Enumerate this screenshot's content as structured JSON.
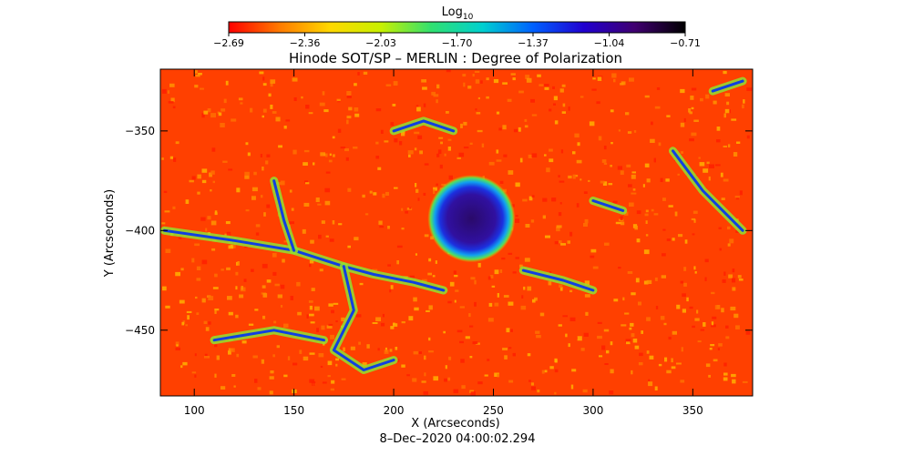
{
  "chart_data": {
    "type": "heatmap",
    "title": "Hinode SOT/SP – MERLIN : Degree of Polarization",
    "colorbar": {
      "label_base": "Log",
      "label_subscript": "10",
      "ticks": [
        "−2.69",
        "−2.36",
        "−2.03",
        "−1.70",
        "−1.37",
        "−1.04",
        "−0.71"
      ],
      "range": [
        -2.69,
        -0.71
      ],
      "colors": [
        "#ff0000",
        "#ff7a00",
        "#ffd800",
        "#c8f000",
        "#30e070",
        "#00d0d0",
        "#0060ff",
        "#2000d0",
        "#400070",
        "#000000"
      ]
    },
    "xlabel": "X (Arcseconds)",
    "ylabel": "Y (Arcseconds)",
    "xlim": [
      83,
      380
    ],
    "ylim": [
      -483,
      -319
    ],
    "x_ticks": [
      100,
      150,
      200,
      250,
      300,
      350
    ],
    "y_ticks": [
      -350,
      -400,
      -450
    ],
    "y_tick_labels": [
      "−350",
      "−400",
      "−450"
    ],
    "date_label": "8–Dec–2020 04:00:02.294",
    "features": [
      {
        "kind": "sunspot",
        "x": 239,
        "y": -394,
        "value": -0.71
      }
    ]
  }
}
